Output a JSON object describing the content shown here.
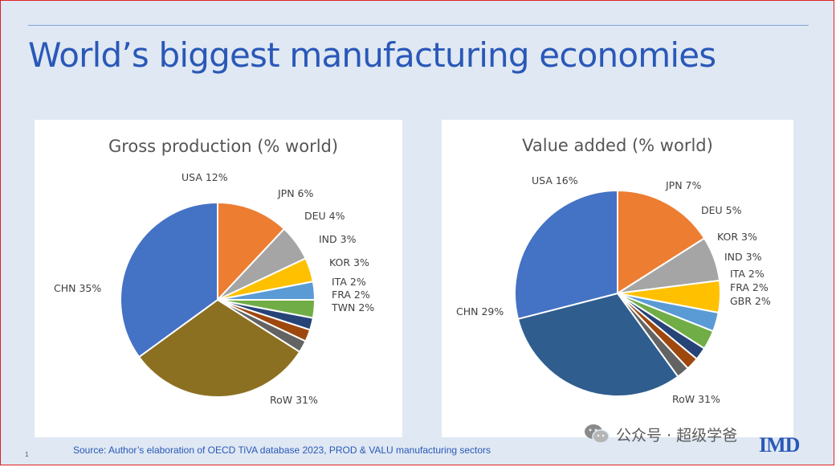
{
  "slide": {
    "title": "World’s biggest manufacturing economies",
    "source": "Source: Author’s elaboration of OECD   TiVA database 2023, PROD & VALU manufacturing sectors",
    "page_number": "1",
    "watermark": "公众号 · 超级学爸",
    "logo": "IMD"
  },
  "chart_data": [
    {
      "type": "pie",
      "title": "Gross production  (% world)",
      "slices": [
        {
          "label": "USA 12%",
          "value": 12,
          "color": "#ed7d31"
        },
        {
          "label": "JPN 6%",
          "value": 6,
          "color": "#a5a5a5"
        },
        {
          "label": "DEU 4%",
          "value": 4,
          "color": "#ffc000"
        },
        {
          "label": "IND 3%",
          "value": 3,
          "color": "#5b9bd5"
        },
        {
          "label": "KOR 3%",
          "value": 3,
          "color": "#70ad47"
        },
        {
          "label": "ITA 2%",
          "value": 2,
          "color": "#264478"
        },
        {
          "label": "FRA 2%",
          "value": 2,
          "color": "#9e480e"
        },
        {
          "label": "TWN 2%",
          "value": 2,
          "color": "#636363"
        },
        {
          "label": "RoW 31%",
          "value": 31,
          "color": "#8c7022"
        },
        {
          "label": "CHN 35%",
          "value": 35,
          "color": "#4472c4"
        }
      ]
    },
    {
      "type": "pie",
      "title": "Value added (% world)",
      "slices": [
        {
          "label": "USA 16%",
          "value": 16,
          "color": "#ed7d31"
        },
        {
          "label": "JPN 7%",
          "value": 7,
          "color": "#a5a5a5"
        },
        {
          "label": "DEU 5%",
          "value": 5,
          "color": "#ffc000"
        },
        {
          "label": "KOR 3%",
          "value": 3,
          "color": "#5b9bd5"
        },
        {
          "label": "IND 3%",
          "value": 3,
          "color": "#70ad47"
        },
        {
          "label": "ITA 2%",
          "value": 2,
          "color": "#264478"
        },
        {
          "label": "FRA 2%",
          "value": 2,
          "color": "#9e480e"
        },
        {
          "label": "GBR 2%",
          "value": 2,
          "color": "#636363"
        },
        {
          "label": "RoW 31%",
          "value": 31,
          "color": "#2f5d8e"
        },
        {
          "label": "CHN 29%",
          "value": 29,
          "color": "#4472c4"
        }
      ]
    }
  ]
}
